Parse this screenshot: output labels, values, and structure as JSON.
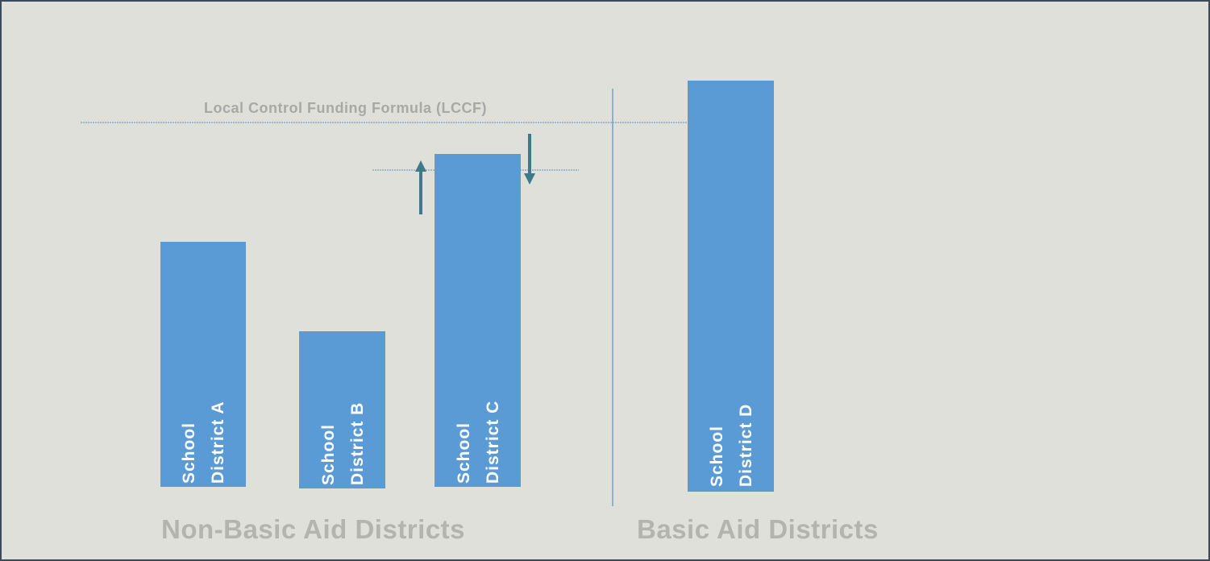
{
  "reference_line": {
    "label": "Local Control Funding Formula (LCCF)"
  },
  "bars": [
    {
      "lines": [
        "School",
        "District A"
      ]
    },
    {
      "lines": [
        "School",
        "District B"
      ]
    },
    {
      "lines": [
        "School",
        "District C"
      ]
    },
    {
      "lines": [
        "School",
        "District D"
      ]
    }
  ],
  "groups": [
    "Non-Basic Aid Districts",
    "Basic Aid Districts"
  ]
}
